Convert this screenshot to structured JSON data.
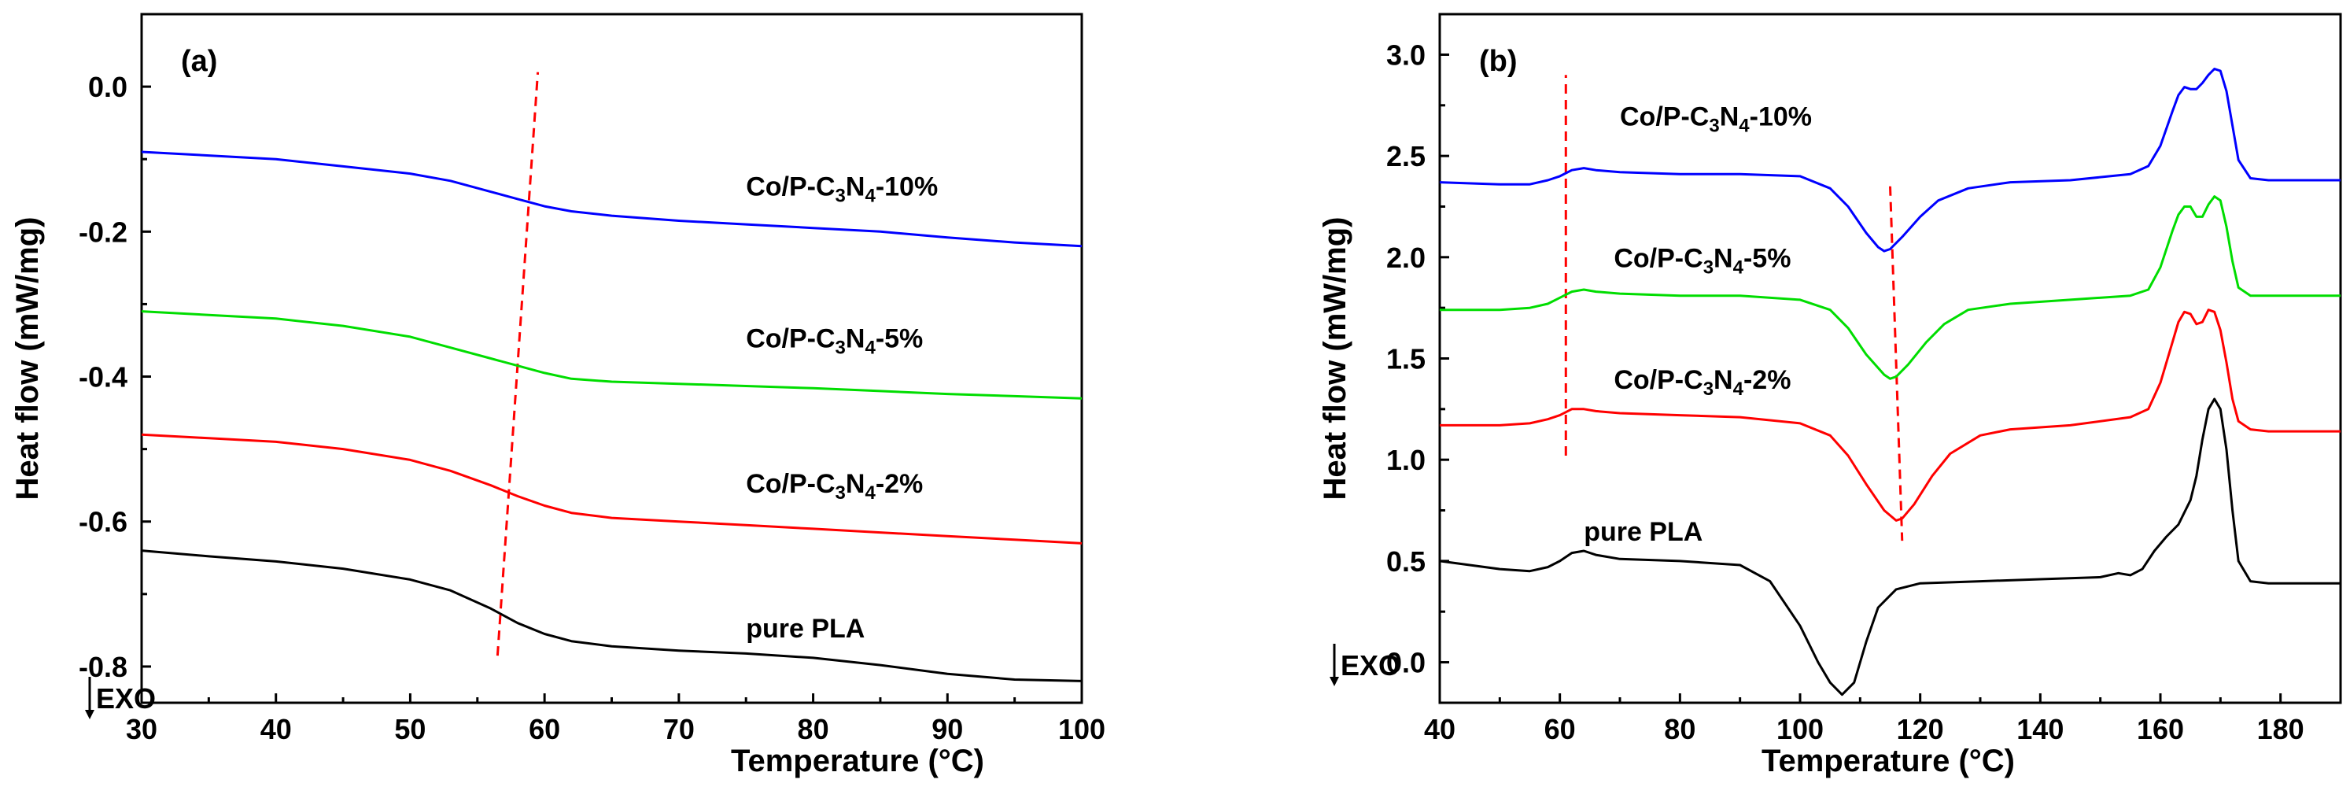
{
  "chart_data": [
    {
      "type": "line",
      "panel_label": "(a)",
      "xlabel": "Temperature (°C)",
      "ylabel": "Heat flow (mW/mg)",
      "exo_label": "EXO",
      "xlim": [
        30,
        100
      ],
      "ylim": [
        -0.85,
        0.1
      ],
      "xticks": [
        30,
        40,
        50,
        60,
        70,
        80,
        90,
        100
      ],
      "yticks": [
        0.0,
        -0.2,
        -0.4,
        -0.6,
        -0.8
      ],
      "ytick_labels": [
        "0.0",
        "-0.2",
        "-0.4",
        "-0.6",
        "-0.8"
      ],
      "series": [
        {
          "name": "Co/P-C3N4-10%",
          "color": "#0000ff",
          "label_at": [
            75,
            -0.15
          ],
          "x": [
            30,
            35,
            40,
            45,
            50,
            53,
            56,
            58,
            60,
            62,
            65,
            70,
            75,
            80,
            85,
            90,
            95,
            100
          ],
          "y": [
            -0.09,
            -0.095,
            -0.1,
            -0.11,
            -0.12,
            -0.13,
            -0.145,
            -0.155,
            -0.165,
            -0.172,
            -0.178,
            -0.185,
            -0.19,
            -0.195,
            -0.2,
            -0.208,
            -0.215,
            -0.22
          ]
        },
        {
          "name": "Co/P-C3N4-5%",
          "color": "#00dd00",
          "label_at": [
            75,
            -0.36
          ],
          "x": [
            30,
            35,
            40,
            45,
            50,
            53,
            56,
            58,
            60,
            62,
            65,
            70,
            75,
            80,
            85,
            90,
            95,
            100
          ],
          "y": [
            -0.31,
            -0.315,
            -0.32,
            -0.33,
            -0.345,
            -0.36,
            -0.375,
            -0.385,
            -0.395,
            -0.403,
            -0.407,
            -0.41,
            -0.413,
            -0.416,
            -0.42,
            -0.424,
            -0.427,
            -0.43
          ]
        },
        {
          "name": "Co/P-C3N4-2%",
          "color": "#ff0000",
          "label_at": [
            75,
            -0.56
          ],
          "x": [
            30,
            35,
            40,
            45,
            50,
            53,
            56,
            58,
            60,
            62,
            65,
            70,
            75,
            80,
            85,
            90,
            95,
            100
          ],
          "y": [
            -0.48,
            -0.485,
            -0.49,
            -0.5,
            -0.515,
            -0.53,
            -0.55,
            -0.565,
            -0.578,
            -0.588,
            -0.595,
            -0.6,
            -0.605,
            -0.61,
            -0.615,
            -0.62,
            -0.625,
            -0.63
          ]
        },
        {
          "name": "pure PLA",
          "color": "#000000",
          "label_at": [
            75,
            -0.76
          ],
          "x": [
            30,
            35,
            40,
            45,
            50,
            53,
            56,
            58,
            60,
            62,
            65,
            70,
            75,
            80,
            85,
            90,
            95,
            100
          ],
          "y": [
            -0.64,
            -0.648,
            -0.655,
            -0.665,
            -0.68,
            -0.695,
            -0.72,
            -0.74,
            -0.755,
            -0.765,
            -0.772,
            -0.778,
            -0.782,
            -0.788,
            -0.798,
            -0.81,
            -0.818,
            -0.82
          ]
        }
      ],
      "annotations": [
        {
          "type": "dashed-line",
          "color": "#ff0000",
          "from": [
            56.5,
            -0.785
          ],
          "to": [
            59.5,
            0.02
          ]
        }
      ]
    },
    {
      "type": "line",
      "panel_label": "(b)",
      "xlabel": "Temperature (°C)",
      "ylabel": "Heat flow (mW/mg)",
      "exo_label": "EXO",
      "xlim": [
        40,
        190
      ],
      "ylim": [
        -0.2,
        3.2
      ],
      "xticks": [
        40,
        60,
        80,
        100,
        120,
        140,
        160,
        180
      ],
      "yticks": [
        0.0,
        0.5,
        1.0,
        1.5,
        2.0,
        2.5,
        3.0
      ],
      "ytick_labels": [
        "0.0",
        "0.5",
        "1.0",
        "1.5",
        "2.0",
        "2.5",
        "3.0"
      ],
      "series": [
        {
          "name": "Co/P-C3N4-10%",
          "color": "#0000ff",
          "label_at": [
            70,
            2.65
          ],
          "x": [
            40,
            50,
            55,
            58,
            60,
            62,
            64,
            66,
            70,
            80,
            90,
            100,
            105,
            108,
            111,
            113,
            114,
            115,
            117,
            120,
            123,
            128,
            135,
            145,
            155,
            158,
            160,
            162,
            163,
            164,
            165,
            166,
            167,
            168,
            169,
            170,
            171,
            172,
            173,
            175,
            178,
            190
          ],
          "y": [
            2.37,
            2.36,
            2.36,
            2.38,
            2.4,
            2.43,
            2.44,
            2.43,
            2.42,
            2.41,
            2.41,
            2.4,
            2.34,
            2.25,
            2.12,
            2.05,
            2.03,
            2.04,
            2.1,
            2.2,
            2.28,
            2.34,
            2.37,
            2.38,
            2.41,
            2.45,
            2.55,
            2.72,
            2.8,
            2.84,
            2.83,
            2.83,
            2.86,
            2.9,
            2.93,
            2.92,
            2.82,
            2.65,
            2.48,
            2.39,
            2.38,
            2.38
          ]
        },
        {
          "name": "Co/P-C3N4-5%",
          "color": "#00dd00",
          "label_at": [
            69,
            1.95
          ],
          "x": [
            40,
            50,
            55,
            58,
            60,
            62,
            64,
            66,
            70,
            80,
            90,
            100,
            105,
            108,
            111,
            114,
            115,
            116,
            118,
            121,
            124,
            128,
            135,
            145,
            155,
            158,
            160,
            162,
            163,
            164,
            165,
            166,
            167,
            168,
            169,
            170,
            171,
            172,
            173,
            175,
            178,
            190
          ],
          "y": [
            1.74,
            1.74,
            1.75,
            1.77,
            1.8,
            1.83,
            1.84,
            1.83,
            1.82,
            1.81,
            1.81,
            1.79,
            1.74,
            1.65,
            1.52,
            1.42,
            1.4,
            1.41,
            1.47,
            1.58,
            1.67,
            1.74,
            1.77,
            1.79,
            1.81,
            1.84,
            1.95,
            2.13,
            2.21,
            2.25,
            2.25,
            2.2,
            2.2,
            2.26,
            2.3,
            2.28,
            2.15,
            1.98,
            1.85,
            1.81,
            1.81,
            1.81
          ]
        },
        {
          "name": "Co/P-C3N4-2%",
          "color": "#ff0000",
          "label_at": [
            69,
            1.35
          ],
          "x": [
            40,
            50,
            55,
            58,
            60,
            62,
            64,
            66,
            70,
            80,
            90,
            100,
            105,
            108,
            111,
            114,
            116,
            117,
            119,
            122,
            125,
            130,
            135,
            145,
            155,
            158,
            160,
            162,
            163,
            164,
            165,
            166,
            167,
            168,
            169,
            170,
            171,
            172,
            173,
            175,
            178,
            190
          ],
          "y": [
            1.17,
            1.17,
            1.18,
            1.2,
            1.22,
            1.25,
            1.25,
            1.24,
            1.23,
            1.22,
            1.21,
            1.18,
            1.12,
            1.02,
            0.88,
            0.75,
            0.7,
            0.71,
            0.78,
            0.92,
            1.03,
            1.12,
            1.15,
            1.17,
            1.21,
            1.25,
            1.38,
            1.58,
            1.68,
            1.73,
            1.72,
            1.67,
            1.68,
            1.74,
            1.73,
            1.64,
            1.48,
            1.3,
            1.19,
            1.15,
            1.14,
            1.14
          ]
        },
        {
          "name": "pure PLA",
          "color": "#000000",
          "label_at": [
            64,
            0.6
          ],
          "x": [
            40,
            45,
            50,
            55,
            58,
            60,
            62,
            64,
            66,
            70,
            80,
            90,
            95,
            100,
            103,
            105,
            107,
            109,
            111,
            113,
            116,
            120,
            130,
            140,
            150,
            153,
            155,
            157,
            159,
            161,
            163,
            165,
            166,
            167,
            168,
            169,
            170,
            171,
            172,
            173,
            175,
            178,
            190
          ],
          "y": [
            0.5,
            0.48,
            0.46,
            0.45,
            0.47,
            0.5,
            0.54,
            0.55,
            0.53,
            0.51,
            0.5,
            0.48,
            0.4,
            0.18,
            0.0,
            -0.1,
            -0.16,
            -0.1,
            0.1,
            0.27,
            0.36,
            0.39,
            0.4,
            0.41,
            0.42,
            0.44,
            0.43,
            0.46,
            0.55,
            0.62,
            0.68,
            0.8,
            0.92,
            1.1,
            1.25,
            1.3,
            1.25,
            1.05,
            0.75,
            0.5,
            0.4,
            0.39,
            0.39
          ]
        }
      ],
      "annotations": [
        {
          "type": "dashed-line",
          "color": "#ff0000",
          "from": [
            61,
            1.02
          ],
          "to": [
            61,
            2.9
          ]
        },
        {
          "type": "dashed-line",
          "color": "#ff0000",
          "from": [
            115,
            2.35
          ],
          "to": [
            117,
            0.6
          ]
        }
      ]
    }
  ]
}
